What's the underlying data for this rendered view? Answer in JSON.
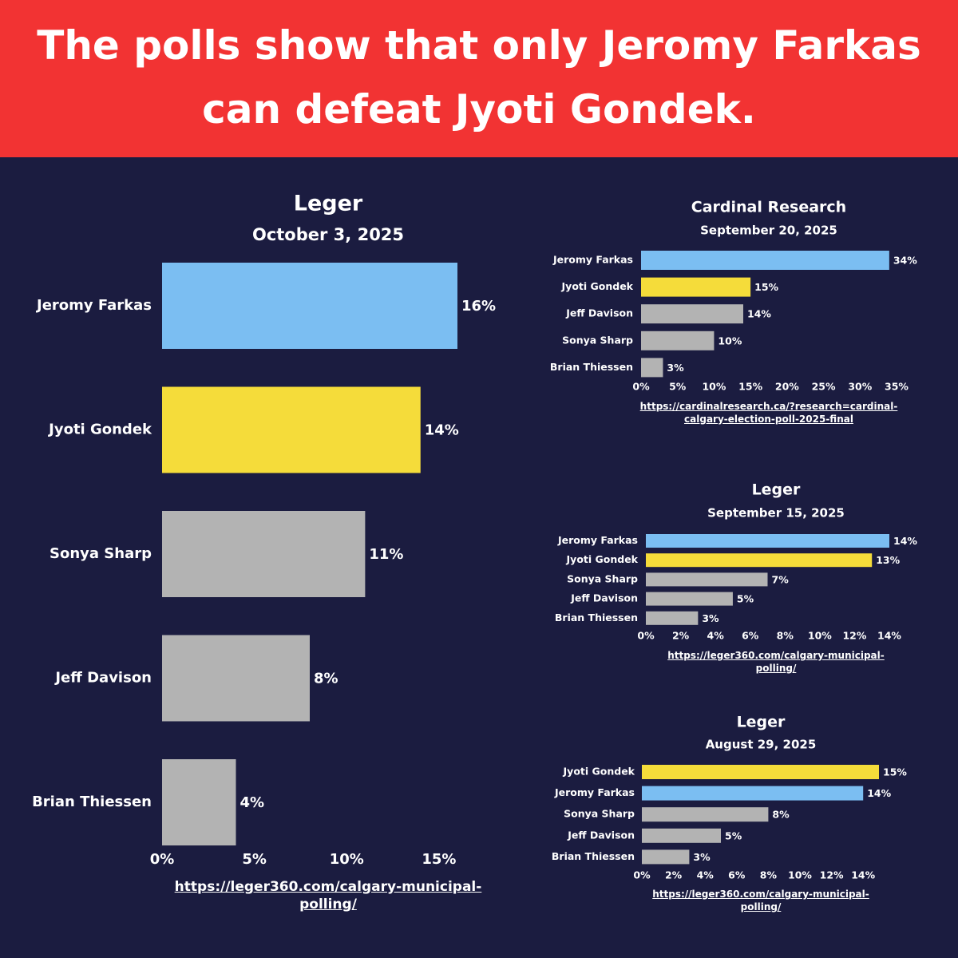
{
  "header": {
    "title": [
      "The polls show that only Jeromy Farkas",
      "can defeat Jyoti Gondek."
    ]
  },
  "chart_data": [
    {
      "type": "bar",
      "orientation": "horizontal",
      "title": "Leger",
      "subtitle": "October 3, 2025",
      "categories": [
        "Jeromy Farkas",
        "Jyoti Gondek",
        "Sonya Sharp",
        "Jeff Davison",
        "Brian Thiessen"
      ],
      "values": [
        16,
        14,
        11,
        8,
        4
      ],
      "value_labels": [
        "16%",
        "14%",
        "11%",
        "8%",
        "4%"
      ],
      "colors": [
        "#7bbef2",
        "#f5dc3a",
        "#b3b3b3",
        "#b3b3b3",
        "#b3b3b3"
      ],
      "xlim": [
        0,
        16
      ],
      "xticks": [
        {
          "value": 0,
          "label": "0%"
        },
        {
          "value": 5,
          "label": "5%"
        },
        {
          "value": 10,
          "label": "10%"
        },
        {
          "value": 15,
          "label": "15%"
        }
      ],
      "source": "https://leger360.com/calgary-municipal-polling/"
    },
    {
      "type": "bar",
      "orientation": "horizontal",
      "title": "Cardinal Research",
      "subtitle": "September 20, 2025",
      "categories": [
        "Jeromy Farkas",
        "Jyoti Gondek",
        "Jeff Davison",
        "Sonya Sharp",
        "Brian Thiessen"
      ],
      "values": [
        34,
        15,
        14,
        10,
        3
      ],
      "value_labels": [
        "34%",
        "15%",
        "14%",
        "10%",
        "3%"
      ],
      "colors": [
        "#7bbef2",
        "#f5dc3a",
        "#b3b3b3",
        "#b3b3b3",
        "#b3b3b3"
      ],
      "xlim": [
        0,
        35
      ],
      "xticks": [
        {
          "value": 0,
          "label": "0%"
        },
        {
          "value": 5,
          "label": "5%"
        },
        {
          "value": 10,
          "label": "10%"
        },
        {
          "value": 15,
          "label": "15%"
        },
        {
          "value": 20,
          "label": "20%"
        },
        {
          "value": 25,
          "label": "25%"
        },
        {
          "value": 30,
          "label": "30%"
        },
        {
          "value": 35,
          "label": "35%"
        }
      ],
      "source": "https://cardinalresearch.ca/?research=cardinal-calgary-election-poll-2025-final"
    },
    {
      "type": "bar",
      "orientation": "horizontal",
      "title": "Leger",
      "subtitle": "September 15, 2025",
      "categories": [
        "Jeromy Farkas",
        "Jyoti Gondek",
        "Sonya Sharp",
        "Jeff Davison",
        "Brian Thiessen"
      ],
      "values": [
        14,
        13,
        7,
        5,
        3
      ],
      "value_labels": [
        "14%",
        "13%",
        "7%",
        "5%",
        "3%"
      ],
      "colors": [
        "#7bbef2",
        "#f5dc3a",
        "#b3b3b3",
        "#b3b3b3",
        "#b3b3b3"
      ],
      "xlim": [
        0,
        14
      ],
      "xticks": [
        {
          "value": 0,
          "label": "0%"
        },
        {
          "value": 2,
          "label": "2%"
        },
        {
          "value": 4,
          "label": "4%"
        },
        {
          "value": 6,
          "label": "6%"
        },
        {
          "value": 8,
          "label": "8%"
        },
        {
          "value": 10,
          "label": "10%"
        },
        {
          "value": 12,
          "label": "12%"
        },
        {
          "value": 14,
          "label": "14%"
        }
      ],
      "source": "https://leger360.com/calgary-municipal-polling/"
    },
    {
      "type": "bar",
      "orientation": "horizontal",
      "title": "Leger",
      "subtitle": "August 29, 2025",
      "categories": [
        "Jyoti Gondek",
        "Jeromy Farkas",
        "Sonya Sharp",
        "Jeff Davison",
        "Brian Thiessen"
      ],
      "values": [
        15,
        14,
        8,
        5,
        3
      ],
      "value_labels": [
        "15%",
        "14%",
        "8%",
        "5%",
        "3%"
      ],
      "colors": [
        "#f5dc3a",
        "#7bbef2",
        "#b3b3b3",
        "#b3b3b3",
        "#b3b3b3"
      ],
      "xlim": [
        0,
        15
      ],
      "xticks": [
        {
          "value": 0,
          "label": "0%"
        },
        {
          "value": 2,
          "label": "2%"
        },
        {
          "value": 4,
          "label": "4%"
        },
        {
          "value": 6,
          "label": "6%"
        },
        {
          "value": 8,
          "label": "8%"
        },
        {
          "value": 10,
          "label": "10%"
        },
        {
          "value": 12,
          "label": "12%"
        },
        {
          "value": 14,
          "label": "14%"
        }
      ],
      "source": "https://leger360.com/calgary-municipal-polling/"
    }
  ]
}
